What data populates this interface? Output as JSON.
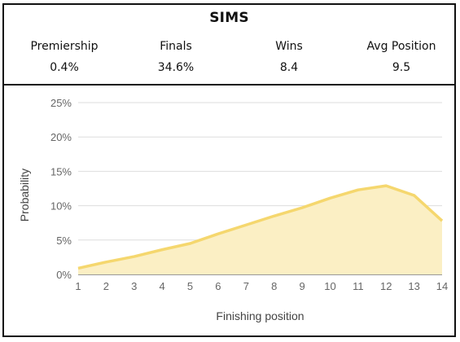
{
  "header": {
    "title": "SIMS",
    "stats": [
      {
        "label": "Premiership",
        "value": "0.4%"
      },
      {
        "label": "Finals",
        "value": "34.6%"
      },
      {
        "label": "Wins",
        "value": "8.4"
      },
      {
        "label": "Avg Position",
        "value": "9.5"
      }
    ]
  },
  "colors": {
    "line": "#f5d76e",
    "fill": "#fbefc4",
    "grid": "#dddddd",
    "border": "#111111"
  },
  "chart_data": {
    "type": "area",
    "xlabel": "Finishing position",
    "ylabel": "Probability",
    "x": [
      1,
      2,
      3,
      4,
      5,
      6,
      7,
      8,
      9,
      10,
      11,
      12,
      13,
      14
    ],
    "xticklabels": [
      "1",
      "2",
      "3",
      "4",
      "5",
      "6",
      "7",
      "8",
      "9",
      "10",
      "11",
      "12",
      "13",
      "14"
    ],
    "values": [
      0.9,
      1.8,
      2.6,
      3.6,
      4.5,
      5.9,
      7.2,
      8.5,
      9.7,
      11.1,
      12.3,
      12.9,
      11.5,
      7.8
    ],
    "ylim": [
      0,
      25
    ],
    "yticks": [
      0,
      5,
      10,
      15,
      20,
      25
    ],
    "yticklabels": [
      "0%",
      "5%",
      "10%",
      "15%",
      "20%",
      "25%"
    ],
    "grid": true,
    "legend": "none"
  }
}
